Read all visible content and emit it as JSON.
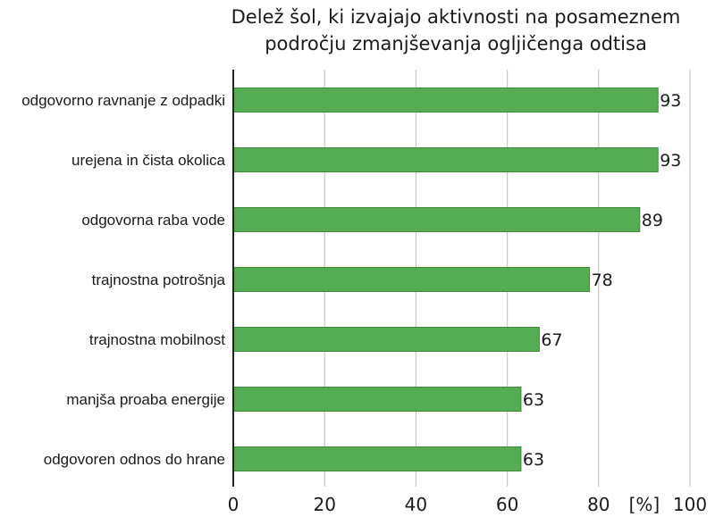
{
  "chart_data": {
    "type": "bar",
    "orientation": "horizontal",
    "title_lines": [
      "Delež šol, ki izvajajo aktivnosti na posameznem",
      "področju zmanjševanja ogljičenga odtisa"
    ],
    "categories": [
      "odgovorno ravnanje z odpadki",
      "urejena in čista okolica",
      "odgovorna raba vode",
      "trajnostna potrošnja",
      "trajnostna mobilnost",
      "manjša proaba energije",
      "odgovoren odnos do hrane"
    ],
    "values": [
      93,
      93,
      89,
      78,
      67,
      63,
      63
    ],
    "value_labels": [
      "93",
      "93",
      "89",
      "78",
      "67",
      "63",
      "63"
    ],
    "xlim": [
      0,
      100
    ],
    "xticks": [
      0,
      20,
      40,
      60,
      80,
      100
    ],
    "xtick_labels": [
      "0",
      "20",
      "40",
      "60",
      "80",
      "100"
    ],
    "unit_label": "[%]",
    "grid": "vertical",
    "legend": "none",
    "colors": {
      "bar": "#54ad52",
      "bar_edge": "#3f8a3d",
      "grid": "#c8c8c8",
      "axis": "#222222"
    }
  }
}
